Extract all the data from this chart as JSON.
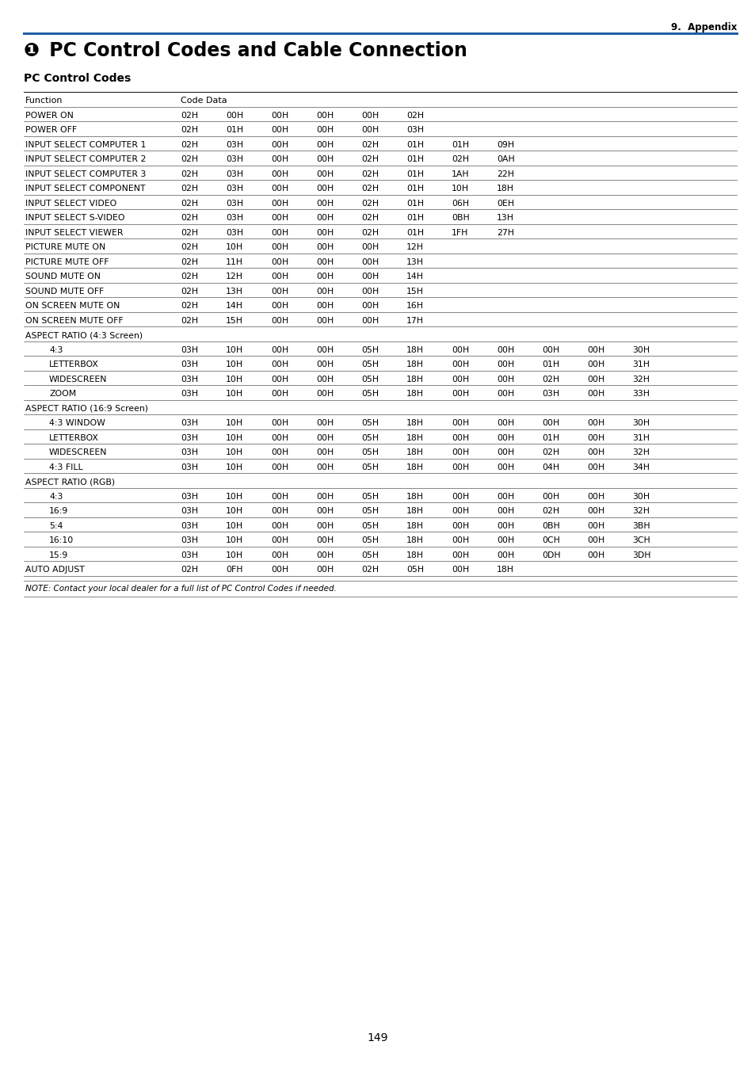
{
  "page_label": "9.  Appendix",
  "page_number": "149",
  "main_title_prefix": "❶",
  "main_title_text": " PC Control Codes and Cable Connection",
  "subtitle": "PC Control Codes",
  "blue_line_color": "#2060a8",
  "table_rows": [
    {
      "func": "Function",
      "codes": [
        "Code Data"
      ],
      "indent": 0,
      "is_header": true
    },
    {
      "func": "POWER ON",
      "codes": [
        "02H",
        "00H",
        "00H",
        "00H",
        "00H",
        "02H"
      ],
      "indent": 0
    },
    {
      "func": "POWER OFF",
      "codes": [
        "02H",
        "01H",
        "00H",
        "00H",
        "00H",
        "03H"
      ],
      "indent": 0
    },
    {
      "func": "INPUT SELECT COMPUTER 1",
      "codes": [
        "02H",
        "03H",
        "00H",
        "00H",
        "02H",
        "01H",
        "01H",
        "09H"
      ],
      "indent": 0
    },
    {
      "func": "INPUT SELECT COMPUTER 2",
      "codes": [
        "02H",
        "03H",
        "00H",
        "00H",
        "02H",
        "01H",
        "02H",
        "0AH"
      ],
      "indent": 0
    },
    {
      "func": "INPUT SELECT COMPUTER 3",
      "codes": [
        "02H",
        "03H",
        "00H",
        "00H",
        "02H",
        "01H",
        "1AH",
        "22H"
      ],
      "indent": 0
    },
    {
      "func": "INPUT SELECT COMPONENT",
      "codes": [
        "02H",
        "03H",
        "00H",
        "00H",
        "02H",
        "01H",
        "10H",
        "18H"
      ],
      "indent": 0
    },
    {
      "func": "INPUT SELECT VIDEO",
      "codes": [
        "02H",
        "03H",
        "00H",
        "00H",
        "02H",
        "01H",
        "06H",
        "0EH"
      ],
      "indent": 0
    },
    {
      "func": "INPUT SELECT S-VIDEO",
      "codes": [
        "02H",
        "03H",
        "00H",
        "00H",
        "02H",
        "01H",
        "0BH",
        "13H"
      ],
      "indent": 0
    },
    {
      "func": "INPUT SELECT VIEWER",
      "codes": [
        "02H",
        "03H",
        "00H",
        "00H",
        "02H",
        "01H",
        "1FH",
        "27H"
      ],
      "indent": 0
    },
    {
      "func": "PICTURE MUTE ON",
      "codes": [
        "02H",
        "10H",
        "00H",
        "00H",
        "00H",
        "12H"
      ],
      "indent": 0
    },
    {
      "func": "PICTURE MUTE OFF",
      "codes": [
        "02H",
        "11H",
        "00H",
        "00H",
        "00H",
        "13H"
      ],
      "indent": 0
    },
    {
      "func": "SOUND MUTE ON",
      "codes": [
        "02H",
        "12H",
        "00H",
        "00H",
        "00H",
        "14H"
      ],
      "indent": 0
    },
    {
      "func": "SOUND MUTE OFF",
      "codes": [
        "02H",
        "13H",
        "00H",
        "00H",
        "00H",
        "15H"
      ],
      "indent": 0
    },
    {
      "func": "ON SCREEN MUTE ON",
      "codes": [
        "02H",
        "14H",
        "00H",
        "00H",
        "00H",
        "16H"
      ],
      "indent": 0
    },
    {
      "func": "ON SCREEN MUTE OFF",
      "codes": [
        "02H",
        "15H",
        "00H",
        "00H",
        "00H",
        "17H"
      ],
      "indent": 0
    },
    {
      "func": "ASPECT RATIO (4:3 Screen)",
      "codes": [],
      "indent": 0,
      "section": true
    },
    {
      "func": "4:3",
      "codes": [
        "03H",
        "10H",
        "00H",
        "00H",
        "05H",
        "18H",
        "00H",
        "00H",
        "00H",
        "00H",
        "30H"
      ],
      "indent": 1
    },
    {
      "func": "LETTERBOX",
      "codes": [
        "03H",
        "10H",
        "00H",
        "00H",
        "05H",
        "18H",
        "00H",
        "00H",
        "01H",
        "00H",
        "31H"
      ],
      "indent": 1
    },
    {
      "func": "WIDESCREEN",
      "codes": [
        "03H",
        "10H",
        "00H",
        "00H",
        "05H",
        "18H",
        "00H",
        "00H",
        "02H",
        "00H",
        "32H"
      ],
      "indent": 1
    },
    {
      "func": "ZOOM",
      "codes": [
        "03H",
        "10H",
        "00H",
        "00H",
        "05H",
        "18H",
        "00H",
        "00H",
        "03H",
        "00H",
        "33H"
      ],
      "indent": 1
    },
    {
      "func": "ASPECT RATIO (16:9 Screen)",
      "codes": [],
      "indent": 0,
      "section": true
    },
    {
      "func": "4:3 WINDOW",
      "codes": [
        "03H",
        "10H",
        "00H",
        "00H",
        "05H",
        "18H",
        "00H",
        "00H",
        "00H",
        "00H",
        "30H"
      ],
      "indent": 1
    },
    {
      "func": "LETTERBOX",
      "codes": [
        "03H",
        "10H",
        "00H",
        "00H",
        "05H",
        "18H",
        "00H",
        "00H",
        "01H",
        "00H",
        "31H"
      ],
      "indent": 1
    },
    {
      "func": "WIDESCREEN",
      "codes": [
        "03H",
        "10H",
        "00H",
        "00H",
        "05H",
        "18H",
        "00H",
        "00H",
        "02H",
        "00H",
        "32H"
      ],
      "indent": 1
    },
    {
      "func": "4:3 FILL",
      "codes": [
        "03H",
        "10H",
        "00H",
        "00H",
        "05H",
        "18H",
        "00H",
        "00H",
        "04H",
        "00H",
        "34H"
      ],
      "indent": 1
    },
    {
      "func": "ASPECT RATIO (RGB)",
      "codes": [],
      "indent": 0,
      "section": true
    },
    {
      "func": "4:3",
      "codes": [
        "03H",
        "10H",
        "00H",
        "00H",
        "05H",
        "18H",
        "00H",
        "00H",
        "00H",
        "00H",
        "30H"
      ],
      "indent": 1
    },
    {
      "func": "16:9",
      "codes": [
        "03H",
        "10H",
        "00H",
        "00H",
        "05H",
        "18H",
        "00H",
        "00H",
        "02H",
        "00H",
        "32H"
      ],
      "indent": 1
    },
    {
      "func": "5:4",
      "codes": [
        "03H",
        "10H",
        "00H",
        "00H",
        "05H",
        "18H",
        "00H",
        "00H",
        "0BH",
        "00H",
        "3BH"
      ],
      "indent": 1
    },
    {
      "func": "16:10",
      "codes": [
        "03H",
        "10H",
        "00H",
        "00H",
        "05H",
        "18H",
        "00H",
        "00H",
        "0CH",
        "00H",
        "3CH"
      ],
      "indent": 1
    },
    {
      "func": "15:9",
      "codes": [
        "03H",
        "10H",
        "00H",
        "00H",
        "05H",
        "18H",
        "00H",
        "00H",
        "0DH",
        "00H",
        "3DH"
      ],
      "indent": 1
    },
    {
      "func": "AUTO ADJUST",
      "codes": [
        "02H",
        "0FH",
        "00H",
        "00H",
        "02H",
        "05H",
        "00H",
        "18H"
      ],
      "indent": 0
    }
  ],
  "note": "NOTE: Contact your local dealer for a full list of PC Control Codes if needed.",
  "background_color": "#ffffff",
  "text_color": "#000000"
}
